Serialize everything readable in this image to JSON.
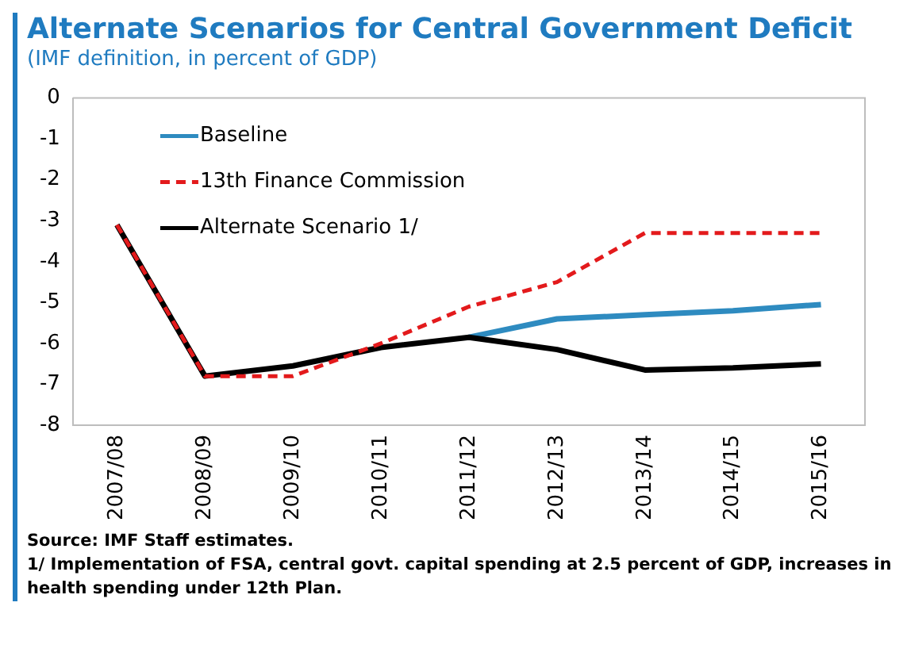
{
  "chart_data": {
    "type": "line",
    "title": "Alternate Scenarios for Central Government Deficit",
    "subtitle": "(IMF definition, in percent of GDP)",
    "categories": [
      "2007/08",
      "2008/09",
      "2009/10",
      "2010/11",
      "2011/12",
      "2012/13",
      "2013/14",
      "2014/15",
      "2015/16"
    ],
    "series": [
      {
        "name": "Baseline",
        "color": "#2e8bc0",
        "line_style": "solid",
        "values": [
          null,
          null,
          null,
          null,
          -5.85,
          -5.4,
          -5.3,
          -5.2,
          -5.05
        ]
      },
      {
        "name": "13th Finance Commission",
        "color": "#e31a1c",
        "line_style": "dashed",
        "values": [
          -3.1,
          -6.8,
          -6.8,
          -6.0,
          -5.1,
          -4.5,
          -3.3,
          -3.3,
          -3.3
        ]
      },
      {
        "name": "Alternate Scenario 1/",
        "color": "#000000",
        "line_style": "solid",
        "values": [
          -3.1,
          -6.8,
          -6.55,
          -6.1,
          -5.85,
          -6.15,
          -6.65,
          -6.6,
          -6.5
        ]
      }
    ],
    "ylim": [
      -8,
      0
    ],
    "yticks": [
      -8,
      -7,
      -6,
      -5,
      -4,
      -3,
      -2,
      -1,
      0
    ],
    "grid": false,
    "legend": "top left",
    "marker": "none",
    "annotations": [
      "Source: IMF Staff estimates.",
      "1/ Implementation of FSA, central govt. capital spending at 2.5 percent of GDP, increases in health spending under 12th Plan."
    ]
  }
}
